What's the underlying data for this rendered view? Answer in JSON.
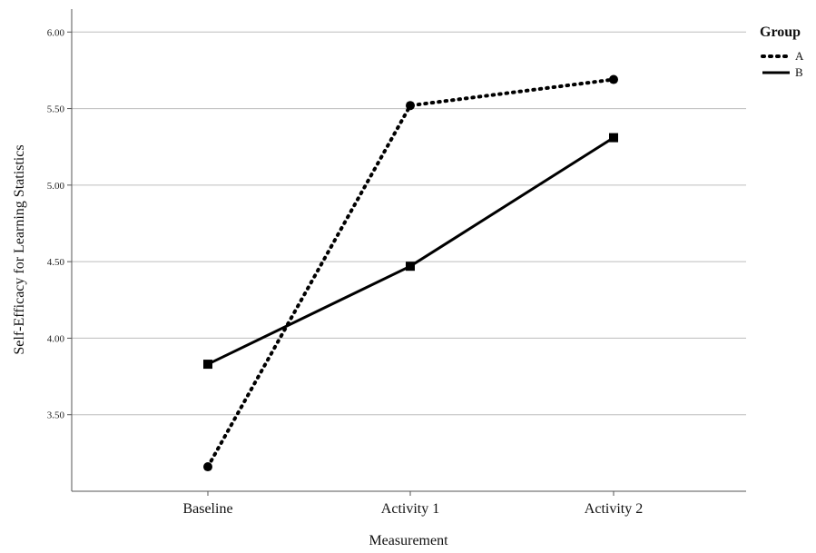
{
  "chart_data": {
    "type": "line",
    "categories": [
      "Baseline",
      "Activity 1",
      "Activity 2"
    ],
    "series": [
      {
        "name": "A",
        "values": [
          3.16,
          5.52,
          5.69
        ],
        "line_style": "dotted",
        "marker": "circle",
        "color": "#000000"
      },
      {
        "name": "B",
        "values": [
          3.83,
          4.47,
          5.31
        ],
        "line_style": "solid",
        "marker": "square",
        "color": "#000000"
      }
    ],
    "xlabel": "Measurement",
    "ylabel": "Self-Efficacy for Learning Statistics",
    "ylim": [
      3.0,
      6.15
    ],
    "yticks": [
      "3.50",
      "4.00",
      "4.50",
      "5.00",
      "5.50",
      "6.00"
    ],
    "ytick_values": [
      3.5,
      4.0,
      4.5,
      5.0,
      5.5,
      6.0
    ],
    "legend_title": "Group",
    "legend_position": "top-right",
    "grid": "horizontal"
  }
}
